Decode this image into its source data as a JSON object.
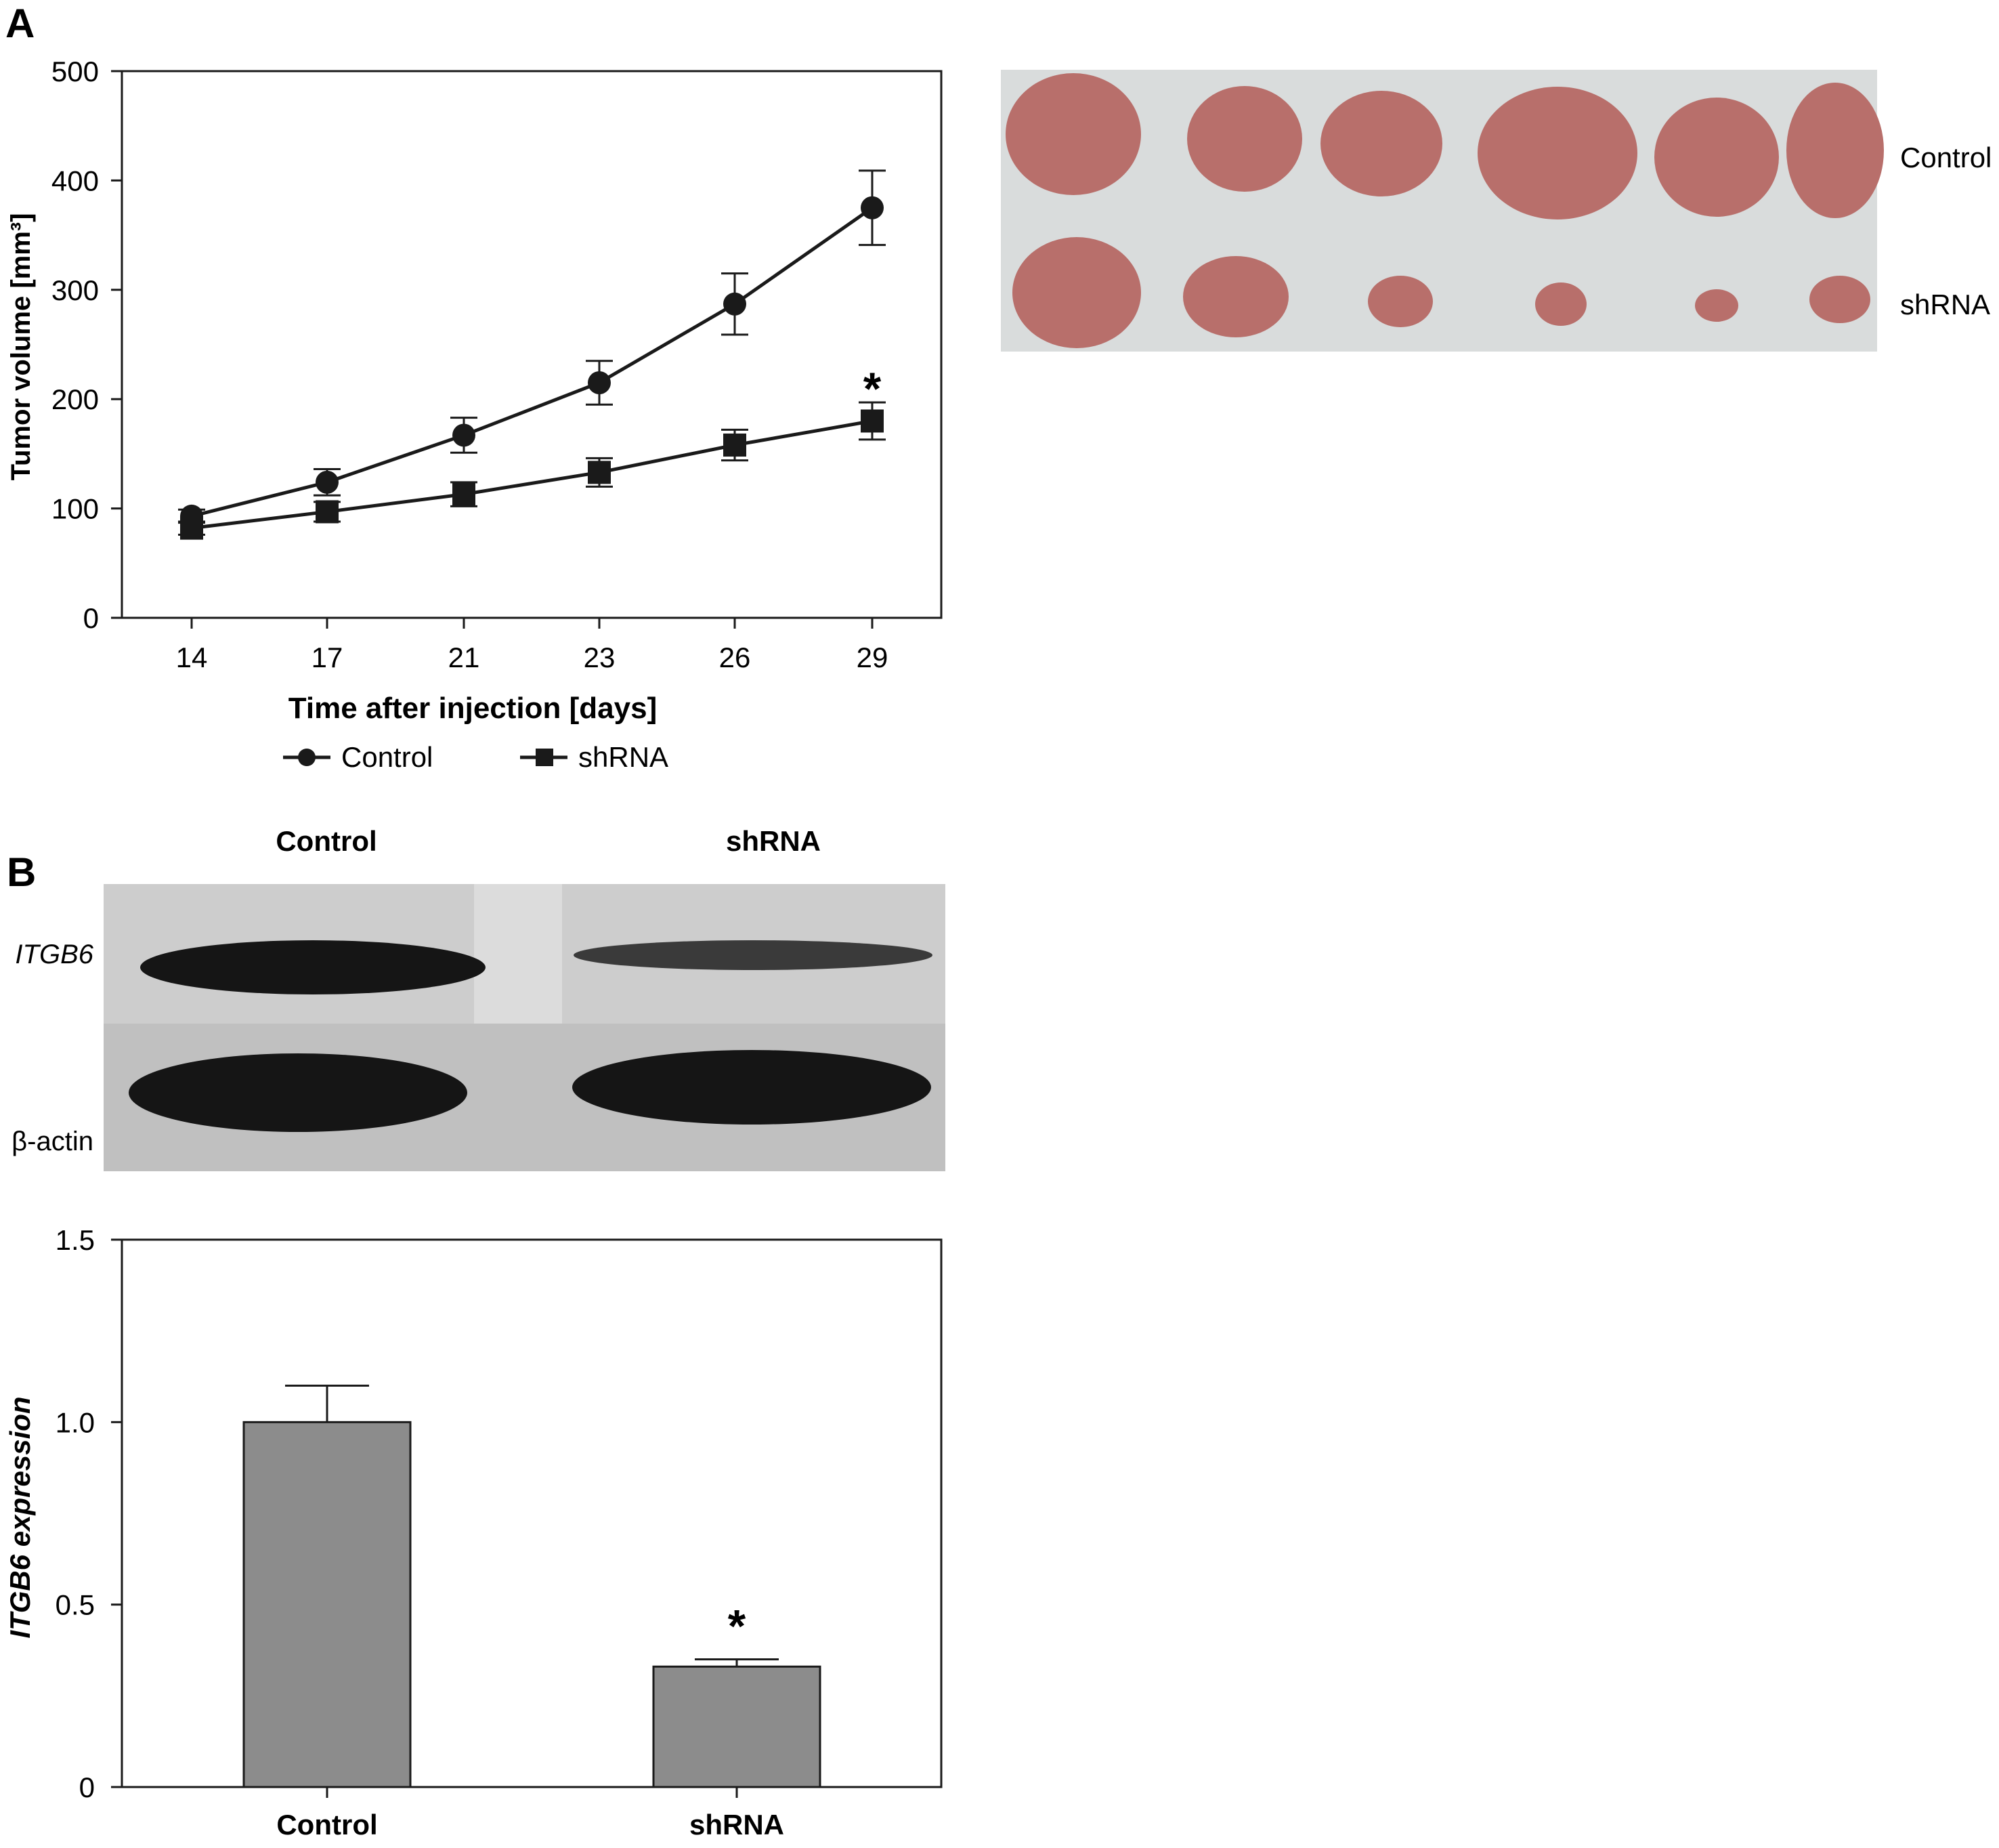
{
  "panels": {
    "a_letter": "A",
    "b_letter": "B"
  },
  "photo": {
    "row_labels": [
      "Control",
      "shRNA"
    ]
  },
  "blot": {
    "lane_labels": [
      "Control",
      "shRNA"
    ],
    "band_labels": [
      "ITGB6",
      "β-actin"
    ]
  },
  "colors": {
    "line": "#1a1a1a",
    "bar_fill": "#8c8c8c",
    "photo_bg": "#d9dcdc",
    "tumor": "#b86f6b",
    "blot_bg": "#c9c9c9",
    "band": "#151515"
  },
  "chart_data": [
    {
      "type": "line",
      "xlabel": "Time after injection [days]",
      "ylabel": "Tumor volume [mm³]",
      "categories": [
        "14",
        "17",
        "21",
        "23",
        "26",
        "29"
      ],
      "ylim": [
        0,
        500
      ],
      "yticks": [
        "0",
        "100",
        "200",
        "300",
        "400",
        "500"
      ],
      "grid": false,
      "legend_position": "bottom",
      "series": [
        {
          "name": "Control",
          "marker": "circle",
          "values": [
            93,
            124,
            167,
            215,
            287,
            375
          ],
          "errors": [
            6,
            12,
            16,
            20,
            28,
            34
          ]
        },
        {
          "name": "shRNA",
          "marker": "square",
          "values": [
            82,
            97,
            113,
            133,
            158,
            180
          ],
          "errors": [
            6,
            9,
            11,
            13,
            14,
            17
          ]
        }
      ],
      "annotations": [
        {
          "text": "*",
          "category": "29"
        }
      ]
    },
    {
      "type": "bar",
      "ylabel": "ITGB6 expression",
      "categories": [
        "Control",
        "shRNA"
      ],
      "values": [
        1.0,
        0.33
      ],
      "errors": [
        0.1,
        0.02
      ],
      "ylim": [
        0,
        1.5
      ],
      "yticks": [
        "0",
        "0.5",
        "1.0",
        "1.5"
      ],
      "grid": false,
      "annotations": [
        {
          "text": "*",
          "category": "shRNA"
        }
      ]
    }
  ]
}
